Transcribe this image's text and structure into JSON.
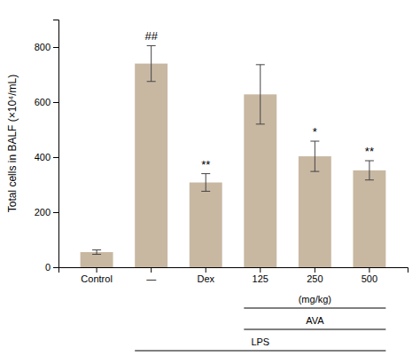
{
  "chart_data": {
    "type": "bar",
    "categories": [
      "Control",
      "—",
      "Dex",
      "125",
      "250",
      "500"
    ],
    "values": [
      55,
      740,
      308,
      628,
      403,
      352
    ],
    "errors": [
      8,
      65,
      32,
      108,
      55,
      35
    ],
    "color": "#c8b8a2",
    "ylabel": "Total cells in BALF (×10⁴/mL)",
    "ylim": [
      0,
      900
    ],
    "yticks": [
      0,
      200,
      400,
      600,
      800
    ],
    "annotations": [
      {
        "text": "##",
        "x": "—"
      },
      {
        "text": "**",
        "x": "Dex"
      },
      {
        "text": "*",
        "x": "250"
      },
      {
        "text": "**",
        "x": "500"
      }
    ],
    "brackets": [
      {
        "text": "(mg/kg)",
        "from": "125",
        "to": "500"
      },
      {
        "text": "AVA",
        "from": "125",
        "to": "500"
      },
      {
        "text": "LPS",
        "from": "—",
        "to": "500"
      }
    ]
  }
}
